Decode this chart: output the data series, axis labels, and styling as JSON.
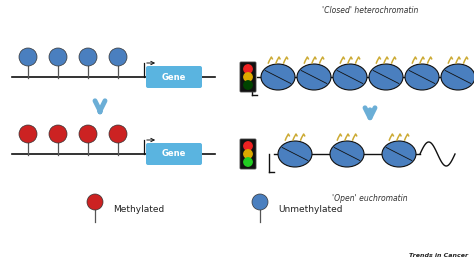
{
  "background_color": "#ffffff",
  "closed_label": "'Closed' heterochromatin",
  "open_label": "'Open' euchromatin",
  "methylated_label": "Methylated",
  "unmethylated_label": "Unmethylated",
  "trends_label": "Trends in Cancer",
  "gene_box_color": "#5ab4e0",
  "gene_text_color": "#ffffff",
  "arrow_color": "#6baed6",
  "blue_ball_color": "#4a7fbf",
  "red_ball_color": "#cc2222",
  "line_color": "#111111",
  "traffic_box_color": "#111111",
  "nucleosome_color": "#4a7fbf",
  "tail_color": "#ccaa33",
  "nuc_edge_color": "#111111"
}
